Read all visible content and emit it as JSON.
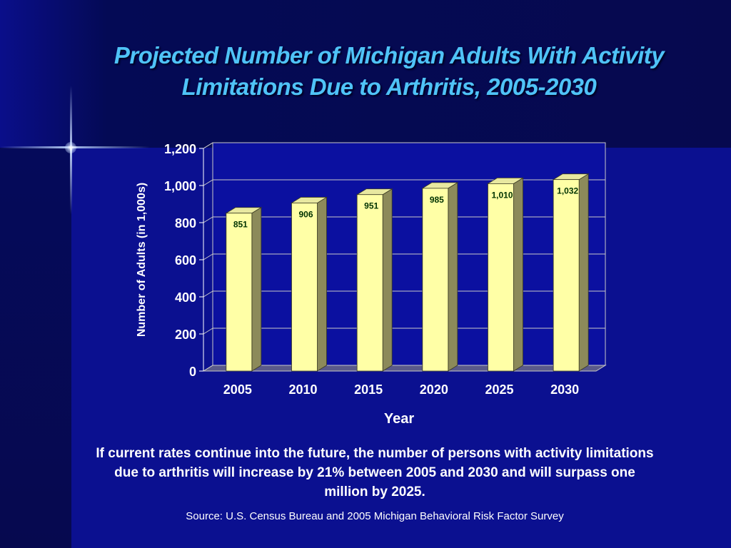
{
  "slide": {
    "title_line1": "Projected Number of Michigan Adults With Activity",
    "title_line2": "Limitations Due to Arthritis, 2005-2030",
    "caption": "If current rates continue into the future, the number of persons with activity limitations due to arthritis will increase by 21% between 2005 and 2030 and will surpass one million by 2025.",
    "source": "Source: U.S. Census Bureau and 2005 Michigan Behavioral Risk Factor Survey"
  },
  "colors": {
    "bar_front": "#ffffa6",
    "bar_side": "#8c8a5a",
    "bar_top": "#e8e8a0",
    "plot_bg": "#0b10a0",
    "grid": "#c8c8c8",
    "title": "#4fc3f7"
  },
  "chart_data": {
    "type": "bar",
    "categories": [
      "2005",
      "2010",
      "2015",
      "2020",
      "2025",
      "2030"
    ],
    "values": [
      851,
      906,
      951,
      985,
      1010,
      1032
    ],
    "value_labels": [
      "851",
      "906",
      "951",
      "985",
      "1,010",
      "1,032"
    ],
    "xlabel": "Year",
    "ylabel": "Number of Adults (in 1,000s)",
    "ylim": [
      0,
      1200
    ],
    "yticks": [
      0,
      200,
      400,
      600,
      800,
      1000,
      1200
    ],
    "ytick_labels": [
      "0",
      "200",
      "400",
      "600",
      "800",
      "1,000",
      "1,200"
    ],
    "grid": true,
    "legend": "none",
    "style": "3d"
  }
}
